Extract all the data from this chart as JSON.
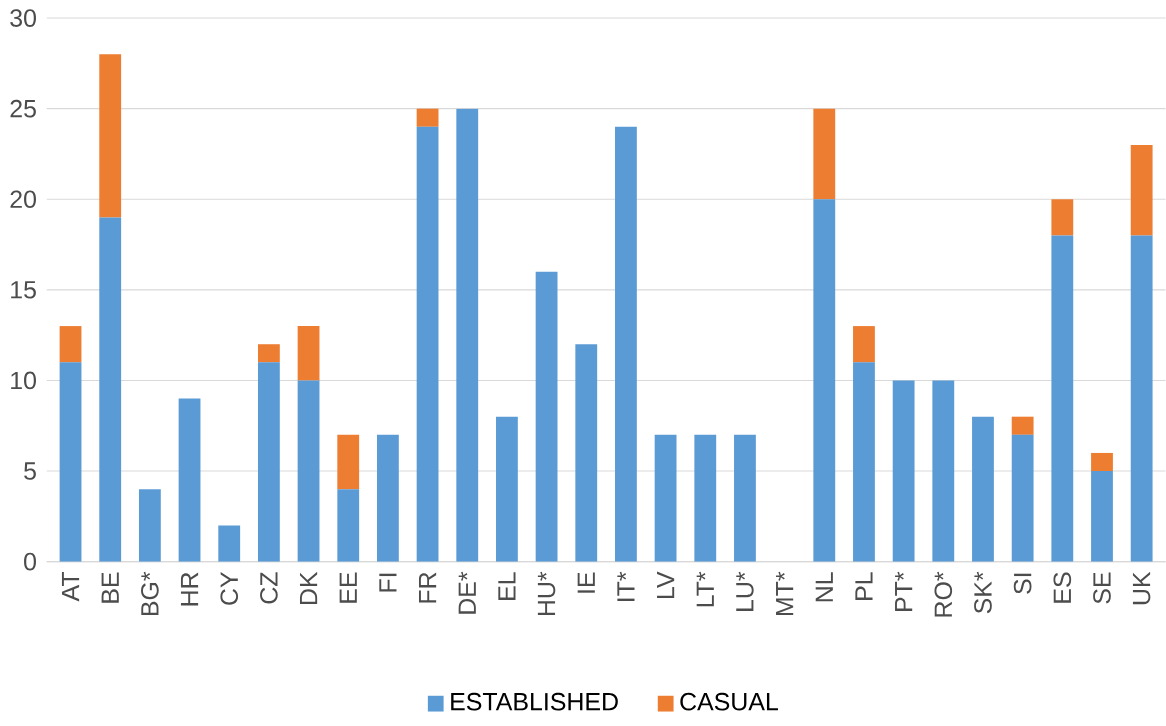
{
  "chart_data": {
    "type": "bar",
    "stacked": true,
    "categories": [
      "AT",
      "BE",
      "BG*",
      "HR",
      "CY",
      "CZ",
      "DK",
      "EE",
      "FI",
      "FR",
      "DE*",
      "EL",
      "HU*",
      "IE",
      "IT*",
      "LV",
      "LT*",
      "LU*",
      "MT*",
      "NL",
      "PL",
      "PT*",
      "RO*",
      "SK*",
      "SI",
      "ES",
      "SE",
      "UK"
    ],
    "series": [
      {
        "name": "ESTABLISHED",
        "color": "#5b9bd5",
        "values": [
          11,
          19,
          4,
          9,
          2,
          11,
          10,
          4,
          7,
          24,
          25,
          8,
          16,
          12,
          24,
          7,
          7,
          7,
          0,
          20,
          11,
          10,
          10,
          8,
          7,
          18,
          5,
          18
        ]
      },
      {
        "name": "CASUAL",
        "color": "#ed7d31",
        "values": [
          2,
          9,
          0,
          0,
          0,
          1,
          3,
          3,
          0,
          1,
          0,
          0,
          0,
          0,
          0,
          0,
          0,
          0,
          0,
          5,
          2,
          0,
          0,
          0,
          1,
          2,
          1,
          5
        ]
      }
    ],
    "ylim": [
      0,
      30
    ],
    "yticks": [
      0,
      5,
      10,
      15,
      20,
      25,
      30
    ],
    "grid": "y",
    "legend": "bottom"
  }
}
